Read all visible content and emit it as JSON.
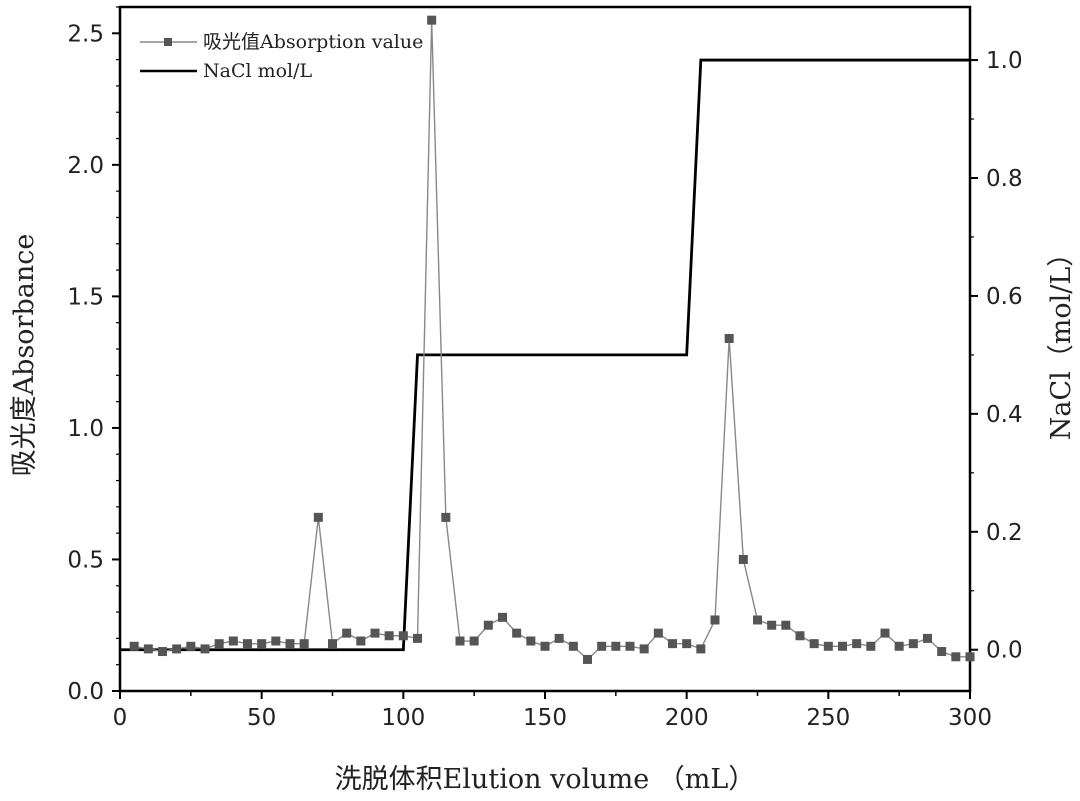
{
  "chart_data": {
    "type": "line",
    "xlabel": "洗脱体积Elution volume （mL）",
    "ylabel": "吸光度Absorbance",
    "y2label": "NaCl（mol/L）",
    "xlim": [
      0,
      300
    ],
    "ylim": [
      0,
      2.6
    ],
    "y2lim": [
      -0.07,
      1.09
    ],
    "x_ticks": [
      0,
      50,
      100,
      150,
      200,
      250,
      300
    ],
    "x_tick_labels": [
      "0",
      "50",
      "100",
      "150",
      "200",
      "250",
      "300"
    ],
    "y_ticks": [
      0,
      0.5,
      1,
      1.5,
      2,
      2.5
    ],
    "y_tick_labels": [
      "0.0",
      "0.5",
      "1.0",
      "1.5",
      "2.0",
      "2.5"
    ],
    "y2_ticks": [
      0,
      0.2,
      0.4,
      0.6,
      0.8,
      1
    ],
    "y2_tick_labels": [
      "0.0",
      "0.2",
      "0.4",
      "0.6",
      "0.8",
      "1.0"
    ],
    "grid": false,
    "legend_position": "top-left",
    "series": [
      {
        "name": "吸光值Absorption value",
        "axis": "left",
        "style": "line-with-square-markers",
        "color": "#888888",
        "marker_color": "#555555",
        "x": [
          5,
          10,
          15,
          20,
          25,
          30,
          35,
          40,
          45,
          50,
          55,
          60,
          65,
          70,
          75,
          80,
          85,
          90,
          95,
          100,
          105,
          110,
          115,
          120,
          125,
          130,
          135,
          140,
          145,
          150,
          155,
          160,
          165,
          170,
          175,
          180,
          185,
          190,
          195,
          200,
          205,
          210,
          215,
          220,
          225,
          230,
          235,
          240,
          245,
          250,
          255,
          260,
          265,
          270,
          275,
          280,
          285,
          290,
          295,
          300
        ],
        "y": [
          0.17,
          0.16,
          0.15,
          0.16,
          0.17,
          0.16,
          0.18,
          0.19,
          0.18,
          0.18,
          0.19,
          0.18,
          0.18,
          0.66,
          0.18,
          0.22,
          0.19,
          0.22,
          0.21,
          0.21,
          0.2,
          2.55,
          0.66,
          0.19,
          0.19,
          0.25,
          0.28,
          0.22,
          0.19,
          0.17,
          0.2,
          0.17,
          0.12,
          0.17,
          0.17,
          0.17,
          0.16,
          0.22,
          0.18,
          0.18,
          0.16,
          0.27,
          1.34,
          0.5,
          0.27,
          0.25,
          0.25,
          0.21,
          0.18,
          0.17,
          0.17,
          0.18,
          0.17,
          0.22,
          0.17,
          0.18,
          0.2,
          0.15,
          0.13,
          0.13
        ]
      },
      {
        "name": "NaCl mol/L",
        "axis": "right",
        "style": "line",
        "color": "#000000",
        "x": [
          0,
          100,
          105,
          200,
          205,
          300
        ],
        "y": [
          0,
          0,
          0.5,
          0.5,
          1.0,
          1.0
        ]
      }
    ]
  }
}
